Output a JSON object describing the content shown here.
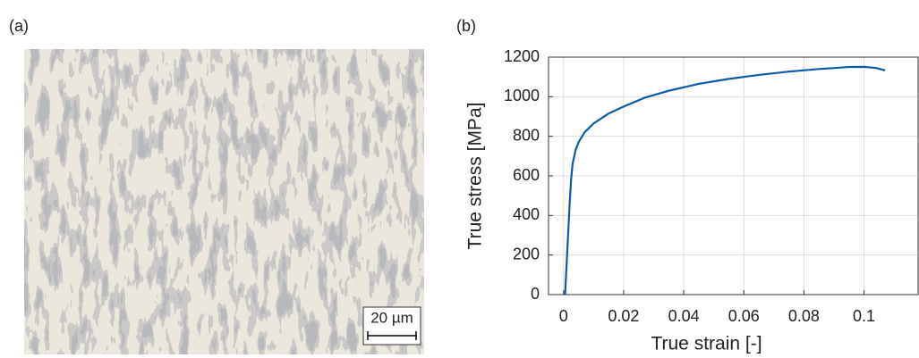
{
  "figure_a": {
    "label": "(a)",
    "scale_bar": "20 µm"
  },
  "chart_data": {
    "type": "line",
    "label": "(b)",
    "xlabel": "True strain [-]",
    "ylabel": "True stress [MPa]",
    "x": [
      0.0005,
      0.001,
      0.0015,
      0.002,
      0.0025,
      0.003,
      0.004,
      0.005,
      0.007,
      0.01,
      0.015,
      0.02,
      0.027,
      0.035,
      0.045,
      0.055,
      0.065,
      0.075,
      0.085,
      0.095,
      0.1,
      0.104,
      0.107
    ],
    "values": [
      0,
      150,
      300,
      450,
      580,
      660,
      730,
      770,
      820,
      865,
      915,
      950,
      995,
      1030,
      1065,
      1090,
      1110,
      1127,
      1140,
      1150,
      1151,
      1145,
      1133
    ],
    "color": "#0b5aa8",
    "xlim": [
      -0.005,
      0.118
    ],
    "xticks": [
      0,
      0.02,
      0.04,
      0.06,
      0.08,
      0.1
    ],
    "ylim": [
      0,
      1200
    ],
    "yticks": [
      0,
      200,
      400,
      600,
      800,
      1000,
      1200
    ],
    "grid": true
  }
}
